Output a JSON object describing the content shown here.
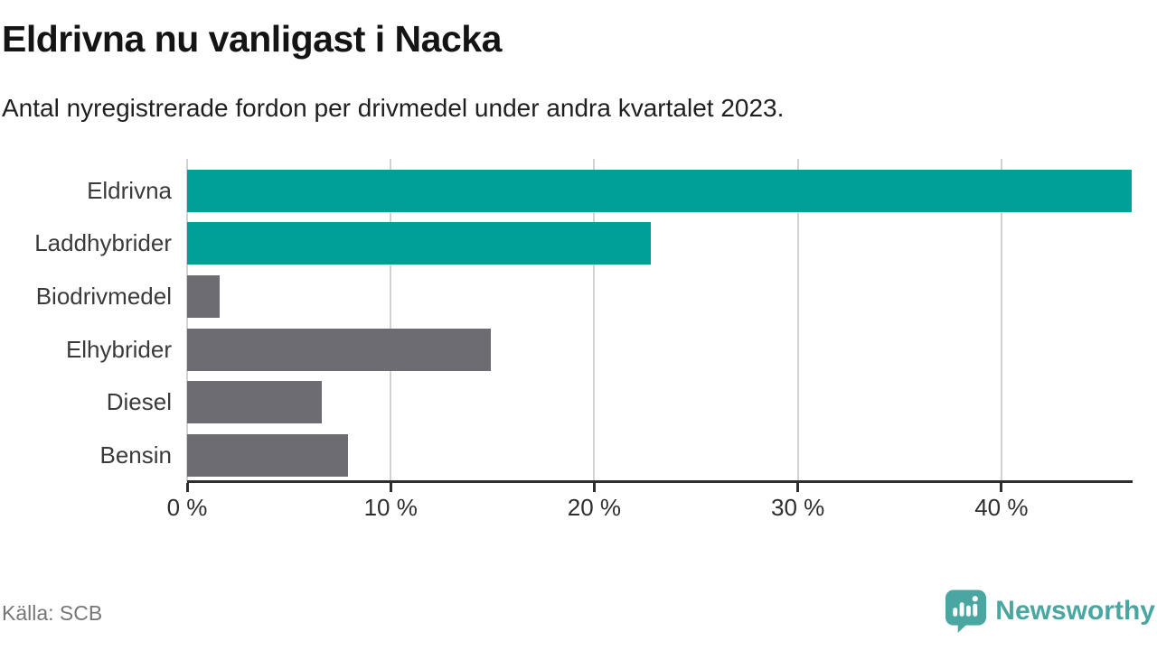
{
  "header": {
    "title": "Eldrivna nu vanligast i Nacka",
    "subtitle": "Antal nyregistrerade fordon per drivmedel under andra kvartalet 2023."
  },
  "chart_data": {
    "type": "bar",
    "orientation": "horizontal",
    "title": "Eldrivna nu vanligast i Nacka",
    "subtitle": "Antal nyregistrerade fordon per drivmedel under andra kvartalet 2023.",
    "categories": [
      "Eldrivna",
      "Laddhybrider",
      "Biodrivmedel",
      "Elhybrider",
      "Diesel",
      "Bensin"
    ],
    "values": [
      46.4,
      22.8,
      1.6,
      14.9,
      6.6,
      7.9
    ],
    "unit": "%",
    "xlim": [
      0,
      46.4
    ],
    "x_ticks": [
      0,
      10,
      20,
      30,
      40
    ],
    "x_tick_labels": [
      "0 %",
      "10 %",
      "20 %",
      "30 %",
      "40 %"
    ],
    "bar_colors": [
      "#00a096",
      "#00a096",
      "#6c6c72",
      "#6c6c72",
      "#6c6c72",
      "#6c6c72"
    ],
    "highlight_color": "#00a096",
    "default_color": "#6c6c72",
    "grid": true,
    "legend": "none",
    "xlabel": "",
    "ylabel": ""
  },
  "footer": {
    "source": "Källa: SCB",
    "brand": "Newsworthy",
    "brand_color": "#4aa6a0",
    "logo_icon": "newsworthy-speech-bubble-bar-chart-icon"
  },
  "colors": {
    "background": "#ffffff",
    "axis": "#2e2e2e",
    "gridline": "#d2d2d2",
    "title_text": "#141414",
    "label_text": "#3a3a3a",
    "source_text": "#767676"
  }
}
